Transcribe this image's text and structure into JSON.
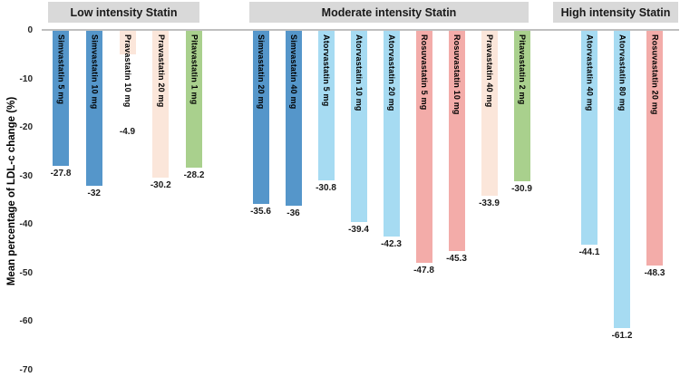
{
  "chart_data": {
    "type": "bar",
    "orientation": "vertical-negative",
    "title": "",
    "xlabel": "",
    "ylabel": "Mean percentage of LDL-c change (%)",
    "ylim": [
      -70,
      0
    ],
    "yticks": [
      0,
      -10,
      -20,
      -30,
      -40,
      -50,
      -60,
      -70
    ],
    "grid": false,
    "legend": false,
    "bar_label_position": "inside-top-rotated",
    "value_label_position": "below-bar",
    "colors": {
      "simvastatin": "#5596CA",
      "atorvastatin": "#A6DBF2",
      "rosuvastatin": "#F3ACA9",
      "pravastatin": "#FBE6DA",
      "pitavastatin": "#A9D08D",
      "header_bg": "#D9D9D9",
      "axis_line": "#BFBFBF"
    },
    "groups": [
      {
        "label": "Low intensity Statin",
        "bars": [
          {
            "label": "Simvastatin 5 mg",
            "value": -27.8,
            "drug": "simvastatin"
          },
          {
            "label": "Simvastatin 10 mg",
            "value": -32,
            "drug": "simvastatin"
          },
          {
            "label": "Pravastatin 10 mg",
            "value": -4.9,
            "drug": "pravastatin"
          },
          {
            "label": "Pravastatin 20 mg",
            "value": -30.2,
            "drug": "pravastatin"
          },
          {
            "label": "Pitavastatin 1 mg",
            "value": -28.2,
            "drug": "pitavastatin"
          }
        ]
      },
      {
        "label": "Moderate intensity Statin",
        "bars": [
          {
            "label": "Simvastatin 20 mg",
            "value": -35.6,
            "drug": "simvastatin"
          },
          {
            "label": "Simvastatin 40 mg",
            "value": -36,
            "drug": "simvastatin"
          },
          {
            "label": "Atorvastatin 5 mg",
            "value": -30.8,
            "drug": "atorvastatin"
          },
          {
            "label": "Atorvastatin 10 mg",
            "value": -39.4,
            "drug": "atorvastatin"
          },
          {
            "label": "Atorvastatin 20 mg",
            "value": -42.3,
            "drug": "atorvastatin"
          },
          {
            "label": "Rosuvastatin 5 mg",
            "value": -47.8,
            "drug": "rosuvastatin"
          },
          {
            "label": "Rosuvastatin 10 mg",
            "value": -45.3,
            "drug": "rosuvastatin"
          },
          {
            "label": "Pravastatin 40 mg",
            "value": -33.9,
            "drug": "pravastatin"
          },
          {
            "label": "Pitavastatin 2 mg",
            "value": -30.9,
            "drug": "pitavastatin"
          }
        ]
      },
      {
        "label": "High intensity Statin",
        "bars": [
          {
            "label": "Atorvastatin 40 mg",
            "value": -44.1,
            "drug": "atorvastatin"
          },
          {
            "label": "Atorvastatin 80 mg",
            "value": -61.2,
            "drug": "atorvastatin"
          },
          {
            "label": "Rosuvastatin 20 mg",
            "value": -48.3,
            "drug": "rosuvastatin"
          }
        ]
      }
    ]
  }
}
